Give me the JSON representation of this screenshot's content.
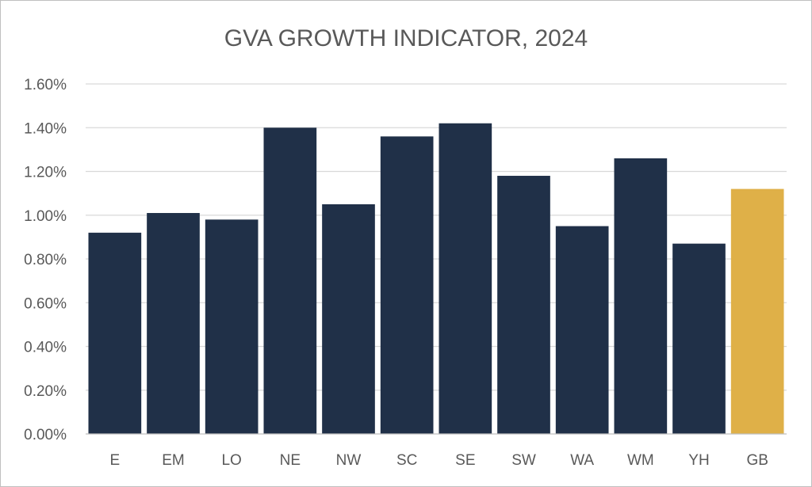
{
  "chart_data": {
    "type": "bar",
    "title": "GVA GROWTH INDICATOR, 2024",
    "xlabel": "",
    "ylabel": "",
    "categories": [
      "E",
      "EM",
      "LO",
      "NE",
      "NW",
      "SC",
      "SE",
      "SW",
      "WA",
      "WM",
      "YH",
      "GB"
    ],
    "values": [
      0.92,
      1.01,
      0.98,
      1.4,
      1.05,
      1.36,
      1.42,
      1.18,
      0.95,
      1.26,
      0.87,
      1.12
    ],
    "ylim": [
      0,
      1.6
    ],
    "yticks": [
      0,
      0.2,
      0.4,
      0.6,
      0.8,
      1.0,
      1.2,
      1.4,
      1.6
    ],
    "ytick_labels": [
      "0.00%",
      "0.20%",
      "0.40%",
      "0.60%",
      "0.80%",
      "1.00%",
      "1.20%",
      "1.40%",
      "1.60%"
    ],
    "grid": true,
    "legend": "none",
    "colors": {
      "default_bar": "#203048",
      "highlight_bar": "#dfb048",
      "highlight_category": "GB"
    }
  }
}
